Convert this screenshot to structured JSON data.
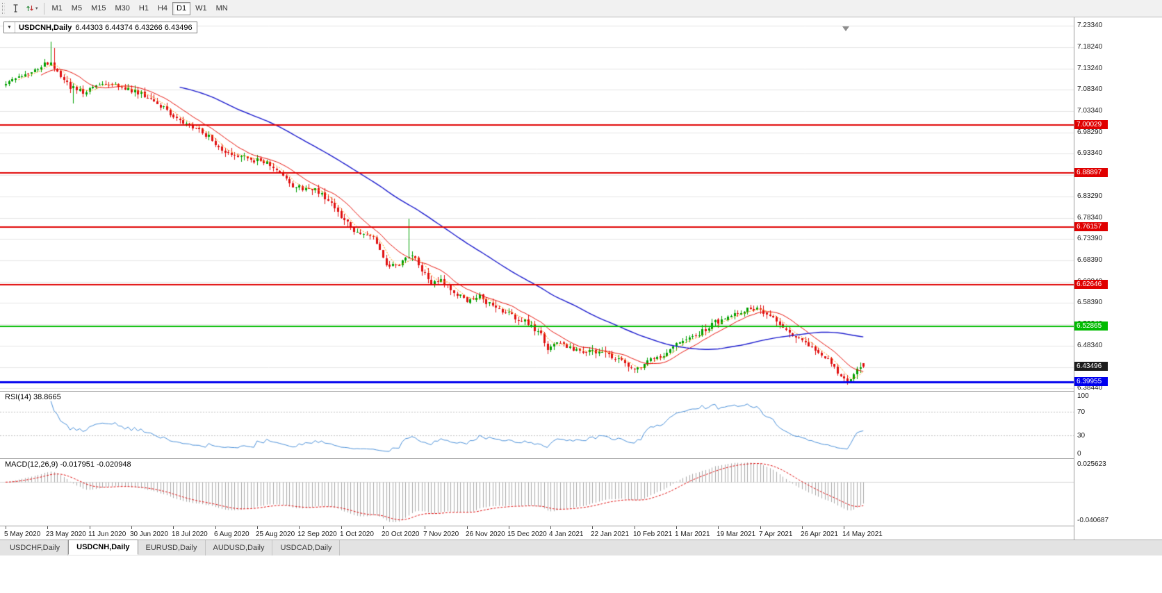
{
  "icons": {
    "dropdown": "▼",
    "tool_dropdown": "▾"
  },
  "toolbar": {
    "timeframes": [
      {
        "label": "M1",
        "active": false
      },
      {
        "label": "M5",
        "active": false
      },
      {
        "label": "M15",
        "active": false
      },
      {
        "label": "M30",
        "active": false
      },
      {
        "label": "H1",
        "active": false
      },
      {
        "label": "H4",
        "active": false
      },
      {
        "label": "D1",
        "active": true
      },
      {
        "label": "W1",
        "active": false
      },
      {
        "label": "MN",
        "active": false
      }
    ]
  },
  "chart": {
    "symbol_period": "USDCNH,Daily",
    "ohlc": "6.44303 6.44374 6.43266 6.43496"
  },
  "price_axis_labels": [
    "7.23340",
    "7.18240",
    "7.13240",
    "7.08340",
    "7.03340",
    "6.98290",
    "6.93340",
    "6.88340",
    "6.83290",
    "6.78340",
    "6.73390",
    "6.68390",
    "6.63340",
    "6.58390",
    "6.53340",
    "6.48340",
    "6.43340",
    "6.38440"
  ],
  "levels": [
    {
      "label": "7.00029",
      "price": 7.00029,
      "color": "#e00000",
      "width": 2
    },
    {
      "label": "6.88897",
      "price": 6.88897,
      "color": "#e00000",
      "width": 2
    },
    {
      "label": "6.76157",
      "price": 6.76157,
      "color": "#e00000",
      "width": 2
    },
    {
      "label": "6.62646",
      "price": 6.62646,
      "color": "#e00000",
      "width": 2
    },
    {
      "label": "6.52865",
      "price": 6.52865,
      "color": "#00bb00",
      "width": 2
    },
    {
      "label": "6.39955",
      "price": 6.39955,
      "color": "#0000ee",
      "width": 3
    }
  ],
  "current_price": {
    "label": "6.43496",
    "price": 6.43496,
    "badge_color": "#1c1c1c"
  },
  "rsi_panel": {
    "label": "RSI(14) 38.8665",
    "period": 14,
    "value": "38.8665",
    "axis_labels": [
      "100",
      "70",
      "30",
      "0"
    ],
    "guide_levels": [
      70,
      30
    ],
    "line_color": "#4a90d9"
  },
  "macd_panel": {
    "label": "MACD(12,26,9) -0.017951 -0.020948",
    "values": "-0.017951 -0.020948",
    "axis_top": "0.025623",
    "axis_bottom": "-0.040687",
    "histogram_color": "#a8a8a8",
    "signal_color": "#e00f0f"
  },
  "date_axis_labels": [
    "5 May 2020",
    "23 May 2020",
    "11 Jun 2020",
    "30 Jun 2020",
    "18 Jul 2020",
    "6 Aug 2020",
    "25 Aug 2020",
    "12 Sep 2020",
    "1 Oct 2020",
    "20 Oct 2020",
    "7 Nov 2020",
    "26 Nov 2020",
    "15 Dec 2020",
    "4 Jan 2021",
    "22 Jan 2021",
    "10 Feb 2021",
    "1 Mar 2021",
    "19 Mar 2021",
    "7 Apr 2021",
    "26 Apr 2021",
    "14 May 2021"
  ],
  "tabs": [
    {
      "label": "USDCHF,Daily",
      "active": false
    },
    {
      "label": "USDCNH,Daily",
      "active": true
    },
    {
      "label": "EURUSD,Daily",
      "active": false
    },
    {
      "label": "AUDUSD,Daily",
      "active": false
    },
    {
      "label": "USDCAD,Daily",
      "active": false
    }
  ],
  "chart_data": {
    "type": "candlestick",
    "symbol": "USDCNH",
    "timeframe": "Daily",
    "bars": 267,
    "seed": 1337,
    "price_range": [
      6.3844,
      7.2334
    ],
    "last_bar": {
      "o": 6.44303,
      "h": 6.44374,
      "l": 6.43266,
      "c": 6.43496
    },
    "up_color": "#00a000",
    "down_color": "#e00f0f",
    "close_anchors": [
      [
        0,
        7.1
      ],
      [
        5,
        7.118
      ],
      [
        10,
        7.135
      ],
      [
        14,
        7.15
      ],
      [
        16,
        7.125
      ],
      [
        20,
        7.088
      ],
      [
        24,
        7.078
      ],
      [
        27,
        7.09
      ],
      [
        32,
        7.098
      ],
      [
        37,
        7.085
      ],
      [
        43,
        7.072
      ],
      [
        48,
        7.045
      ],
      [
        52,
        7.018
      ],
      [
        55,
        7.005
      ],
      [
        59,
        6.992
      ],
      [
        63,
        6.972
      ],
      [
        67,
        6.945
      ],
      [
        72,
        6.93
      ],
      [
        77,
        6.92
      ],
      [
        81,
        6.912
      ],
      [
        85,
        6.888
      ],
      [
        89,
        6.858
      ],
      [
        93,
        6.85
      ],
      [
        96,
        6.846
      ],
      [
        100,
        6.828
      ],
      [
        104,
        6.788
      ],
      [
        107,
        6.76
      ],
      [
        110,
        6.748
      ],
      [
        114,
        6.735
      ],
      [
        118,
        6.672
      ],
      [
        121,
        6.668
      ],
      [
        124,
        6.688
      ],
      [
        126,
        6.7
      ],
      [
        129,
        6.658
      ],
      [
        132,
        6.628
      ],
      [
        135,
        6.636
      ],
      [
        139,
        6.608
      ],
      [
        143,
        6.59
      ],
      [
        147,
        6.6
      ],
      [
        151,
        6.574
      ],
      [
        156,
        6.56
      ],
      [
        160,
        6.545
      ],
      [
        163,
        6.528
      ],
      [
        166,
        6.508
      ],
      [
        168,
        6.472
      ],
      [
        171,
        6.492
      ],
      [
        174,
        6.483
      ],
      [
        178,
        6.472
      ],
      [
        182,
        6.47
      ],
      [
        186,
        6.462
      ],
      [
        190,
        6.452
      ],
      [
        193,
        6.44
      ],
      [
        196,
        6.428
      ],
      [
        199,
        6.448
      ],
      [
        202,
        6.456
      ],
      [
        205,
        6.462
      ],
      [
        208,
        6.487
      ],
      [
        211,
        6.498
      ],
      [
        214,
        6.508
      ],
      [
        217,
        6.522
      ],
      [
        220,
        6.538
      ],
      [
        224,
        6.55
      ],
      [
        228,
        6.562
      ],
      [
        231,
        6.572
      ],
      [
        234,
        6.566
      ],
      [
        238,
        6.553
      ],
      [
        242,
        6.525
      ],
      [
        246,
        6.503
      ],
      [
        250,
        6.482
      ],
      [
        253,
        6.462
      ],
      [
        256,
        6.443
      ],
      [
        259,
        6.408
      ],
      [
        261,
        6.4
      ],
      [
        263,
        6.422
      ],
      [
        266,
        6.435
      ]
    ],
    "spikes": [
      {
        "i": 14,
        "high": 7.196
      },
      {
        "i": 15,
        "high": 7.182
      },
      {
        "i": 21,
        "low": 7.05
      },
      {
        "i": 125,
        "high": 6.782
      },
      {
        "i": 196,
        "low": 6.42
      },
      {
        "i": 260,
        "low": 6.398
      }
    ],
    "moving_averages": [
      {
        "period": 5,
        "color": "#ff9500",
        "dash": [
          2,
          2
        ],
        "width": 1
      },
      {
        "period": 12,
        "color": "#e8150d",
        "dash": null,
        "width": 1
      },
      {
        "period": 55,
        "color": "#1a1acd",
        "dash": null,
        "width": 1.4
      }
    ]
  }
}
